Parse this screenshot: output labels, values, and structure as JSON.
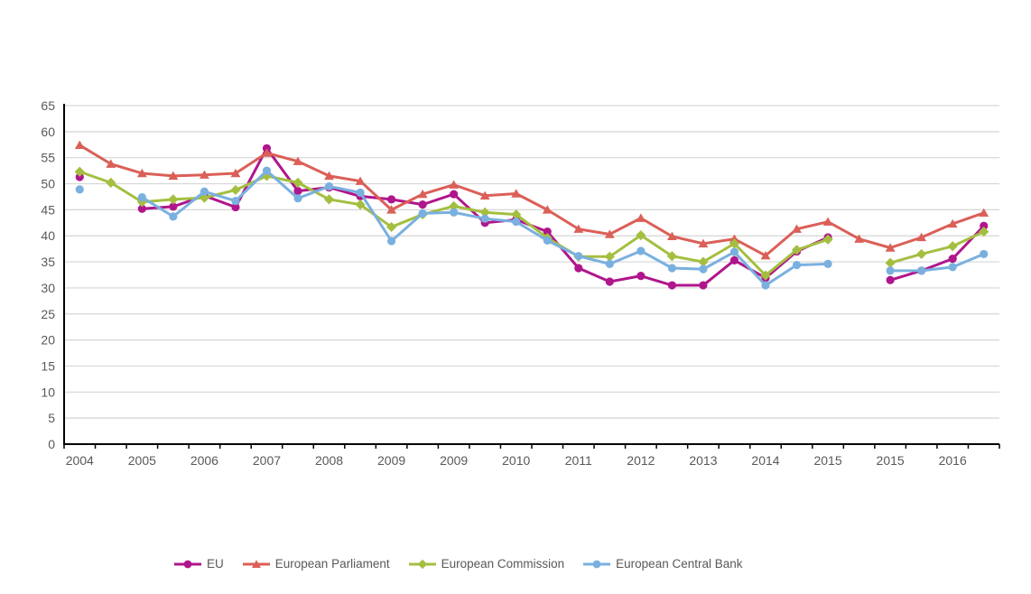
{
  "page": {
    "background_color": "#ffffff"
  },
  "chart_data": {
    "type": "line",
    "title": "",
    "xlabel": "",
    "ylabel": "",
    "ylim": [
      0,
      65
    ],
    "ytick_step": 5,
    "grid": true,
    "grid_color": "#d6d6d6",
    "axis_color": "#000000",
    "tick_label_color": "#595959",
    "n_points": 30,
    "x_labels": [
      "2004",
      "2005",
      "2006",
      "2007",
      "2008",
      "2009",
      "2009",
      "2010",
      "2011",
      "2012",
      "2013",
      "2014",
      "2015",
      "2015",
      "2016"
    ],
    "x_label_every": 2,
    "legend_position": "bottom",
    "series": [
      {
        "name": "EU",
        "color": "#B0168C",
        "marker": "circle",
        "values": [
          51.3,
          null,
          45.2,
          45.6,
          47.7,
          45.5,
          56.8,
          48.6,
          49.3,
          47.6,
          47.0,
          46.0,
          48.0,
          42.5,
          43.1,
          40.8,
          33.8,
          31.2,
          32.3,
          30.5,
          30.5,
          35.3,
          31.9,
          37.0,
          39.7,
          null,
          31.5,
          33.3,
          35.6,
          41.9
        ]
      },
      {
        "name": "European Parliament",
        "color": "#DB5F58",
        "marker": "triangle",
        "values": [
          57.4,
          53.8,
          52.0,
          51.5,
          51.7,
          52.0,
          55.9,
          54.3,
          51.5,
          50.5,
          45.0,
          48.0,
          49.8,
          47.7,
          48.1,
          45.0,
          41.3,
          40.3,
          43.4,
          39.9,
          38.5,
          39.4,
          36.2,
          41.3,
          42.7,
          39.4,
          37.7,
          39.7,
          42.3,
          44.4
        ]
      },
      {
        "name": "European Commission",
        "color": "#A4BF40",
        "marker": "diamond",
        "values": [
          52.3,
          50.2,
          46.5,
          47.0,
          47.3,
          48.8,
          51.5,
          50.2,
          47.0,
          46.0,
          41.7,
          44.1,
          45.7,
          44.5,
          44.1,
          39.6,
          36.0,
          36.0,
          40.1,
          36.1,
          35.0,
          38.5,
          32.4,
          37.3,
          39.3,
          null,
          34.8,
          36.5,
          38.0,
          40.8
        ]
      },
      {
        "name": "European Central Bank",
        "color": "#7AB0DF",
        "marker": "circle",
        "values": [
          48.9,
          null,
          47.4,
          43.7,
          48.5,
          46.7,
          52.5,
          47.2,
          49.5,
          48.3,
          39.0,
          44.3,
          44.5,
          43.3,
          42.7,
          39.1,
          36.1,
          34.6,
          37.1,
          33.8,
          33.6,
          36.9,
          30.5,
          34.4,
          34.6,
          null,
          33.3,
          33.3,
          34.0,
          36.5
        ]
      }
    ]
  }
}
